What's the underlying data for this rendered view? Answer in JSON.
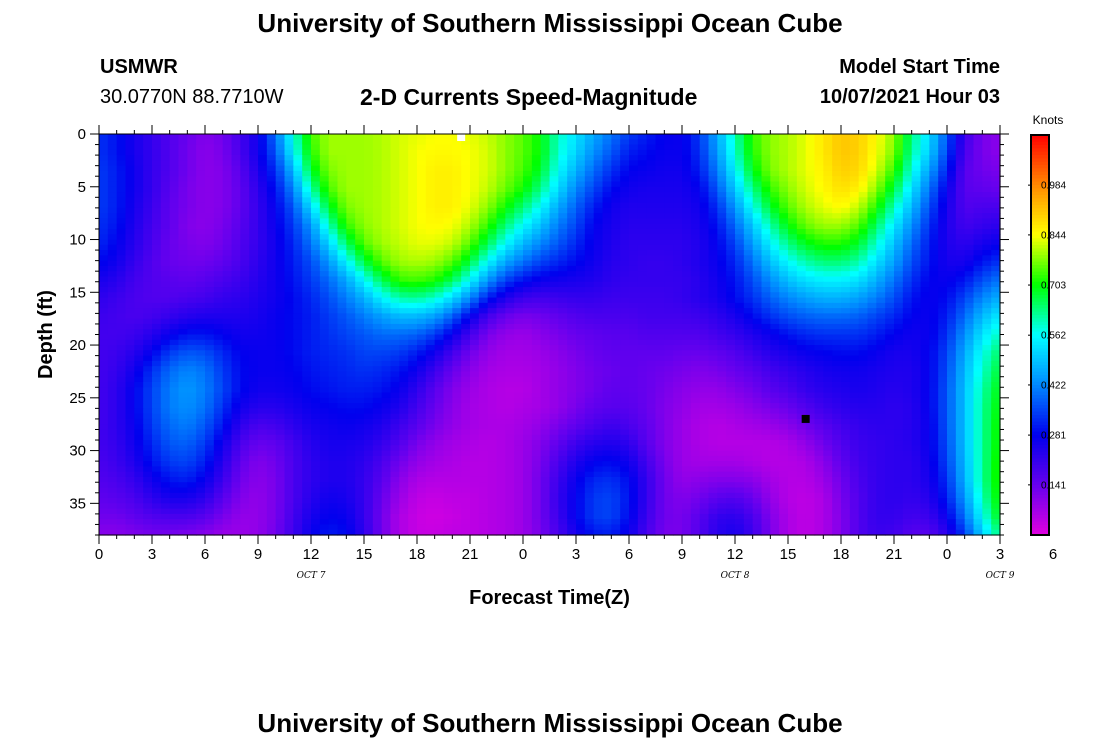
{
  "page": {
    "title_top": "University of Southern Mississippi Ocean Cube",
    "title_bottom": "University of Southern Mississippi Ocean Cube",
    "station": "USMWR",
    "coords": "30.0770N  88.7710W",
    "plot_title": "2-D Currents Speed-Magnitude",
    "model_start_label": "Model Start Time",
    "model_start_value": "10/07/2021 Hour 03"
  },
  "chart_data": {
    "type": "heatmap",
    "title": "2-D Currents Speed-Magnitude",
    "xlabel": "Forecast Time(Z)",
    "ylabel": "Depth (ft)",
    "x_range_hours": [
      0,
      51
    ],
    "x_ticks": [
      "0",
      "3",
      "6",
      "9",
      "12",
      "15",
      "18",
      "21",
      "0",
      "3",
      "6",
      "9",
      "12",
      "15",
      "18",
      "21",
      "0",
      "3",
      "6"
    ],
    "date_labels": [
      {
        "text": "OCT 7",
        "hour": 12
      },
      {
        "text": "OCT 8",
        "hour": 36
      },
      {
        "text": "OCT 9",
        "hour": 51
      }
    ],
    "y_range": [
      0,
      38
    ],
    "y_inverted": true,
    "y_ticks": [
      "0",
      "5",
      "10",
      "15",
      "20",
      "25",
      "30",
      "35"
    ],
    "colorbar": {
      "unit": "Knots",
      "min": 0.0,
      "max": 1.125,
      "tick_labels": [
        "0.141",
        "0.281",
        "0.422",
        "0.562",
        "0.703",
        "0.844",
        "0.984"
      ],
      "colors": [
        "#e000e0",
        "#6600ee",
        "#0000ee",
        "#0088ff",
        "#00ffff",
        "#00ff00",
        "#ffff00",
        "#ff8800",
        "#ff0000"
      ]
    },
    "markers": [
      {
        "hour": 20.5,
        "depth": 0,
        "color": "#ffffff"
      },
      {
        "hour": 40,
        "depth": 27,
        "color": "#000000"
      }
    ],
    "speed_knots": [
      [
        0.33,
        0.3,
        0.25,
        0.21,
        0.17,
        0.14,
        0.11,
        0.13,
        0.19,
        0.26,
        0.4,
        0.58,
        0.74,
        0.79,
        0.79,
        0.79,
        0.8,
        0.82,
        0.83,
        0.84,
        0.84,
        0.83,
        0.81,
        0.78,
        0.75,
        0.7,
        0.6,
        0.53,
        0.46,
        0.4,
        0.34,
        0.31,
        0.28,
        0.27,
        0.34,
        0.46,
        0.61,
        0.73,
        0.78,
        0.8,
        0.83,
        0.87,
        0.91,
        0.9,
        0.85,
        0.78,
        0.64,
        0.52,
        0.37,
        0.2,
        0.12,
        0.1
      ],
      [
        0.33,
        0.3,
        0.25,
        0.21,
        0.17,
        0.13,
        0.1,
        0.12,
        0.18,
        0.26,
        0.37,
        0.55,
        0.72,
        0.79,
        0.79,
        0.79,
        0.8,
        0.82,
        0.84,
        0.85,
        0.85,
        0.84,
        0.82,
        0.78,
        0.75,
        0.7,
        0.59,
        0.51,
        0.43,
        0.37,
        0.31,
        0.29,
        0.27,
        0.27,
        0.33,
        0.44,
        0.59,
        0.72,
        0.78,
        0.8,
        0.83,
        0.87,
        0.91,
        0.9,
        0.84,
        0.77,
        0.62,
        0.5,
        0.35,
        0.18,
        0.12,
        0.1
      ],
      [
        0.34,
        0.31,
        0.26,
        0.21,
        0.17,
        0.13,
        0.1,
        0.11,
        0.16,
        0.24,
        0.33,
        0.48,
        0.68,
        0.77,
        0.79,
        0.79,
        0.8,
        0.82,
        0.84,
        0.86,
        0.86,
        0.84,
        0.82,
        0.78,
        0.74,
        0.68,
        0.56,
        0.47,
        0.39,
        0.33,
        0.28,
        0.27,
        0.26,
        0.26,
        0.31,
        0.41,
        0.55,
        0.69,
        0.77,
        0.8,
        0.83,
        0.86,
        0.9,
        0.89,
        0.82,
        0.73,
        0.58,
        0.45,
        0.31,
        0.16,
        0.13,
        0.12
      ],
      [
        0.34,
        0.31,
        0.26,
        0.21,
        0.16,
        0.12,
        0.1,
        0.11,
        0.15,
        0.22,
        0.3,
        0.42,
        0.61,
        0.74,
        0.79,
        0.79,
        0.8,
        0.82,
        0.84,
        0.86,
        0.86,
        0.84,
        0.81,
        0.76,
        0.71,
        0.63,
        0.52,
        0.42,
        0.35,
        0.29,
        0.26,
        0.25,
        0.25,
        0.25,
        0.28,
        0.37,
        0.5,
        0.63,
        0.73,
        0.78,
        0.82,
        0.85,
        0.88,
        0.86,
        0.78,
        0.67,
        0.53,
        0.4,
        0.27,
        0.16,
        0.15,
        0.14
      ],
      [
        0.34,
        0.31,
        0.25,
        0.2,
        0.15,
        0.12,
        0.1,
        0.11,
        0.15,
        0.21,
        0.28,
        0.37,
        0.52,
        0.68,
        0.77,
        0.79,
        0.8,
        0.82,
        0.84,
        0.86,
        0.86,
        0.83,
        0.78,
        0.71,
        0.64,
        0.56,
        0.46,
        0.38,
        0.31,
        0.26,
        0.24,
        0.24,
        0.24,
        0.24,
        0.26,
        0.33,
        0.44,
        0.57,
        0.68,
        0.75,
        0.8,
        0.83,
        0.85,
        0.81,
        0.72,
        0.6,
        0.48,
        0.36,
        0.25,
        0.17,
        0.18,
        0.18
      ],
      [
        0.33,
        0.3,
        0.24,
        0.19,
        0.15,
        0.11,
        0.1,
        0.12,
        0.16,
        0.21,
        0.27,
        0.34,
        0.44,
        0.6,
        0.73,
        0.78,
        0.8,
        0.82,
        0.84,
        0.85,
        0.84,
        0.8,
        0.73,
        0.64,
        0.56,
        0.49,
        0.41,
        0.35,
        0.28,
        0.25,
        0.23,
        0.23,
        0.23,
        0.23,
        0.25,
        0.3,
        0.39,
        0.5,
        0.61,
        0.7,
        0.76,
        0.79,
        0.79,
        0.75,
        0.65,
        0.54,
        0.43,
        0.33,
        0.24,
        0.19,
        0.21,
        0.22
      ],
      [
        0.32,
        0.28,
        0.23,
        0.18,
        0.14,
        0.12,
        0.11,
        0.13,
        0.17,
        0.21,
        0.26,
        0.32,
        0.4,
        0.51,
        0.65,
        0.75,
        0.79,
        0.81,
        0.83,
        0.83,
        0.81,
        0.75,
        0.66,
        0.56,
        0.48,
        0.42,
        0.37,
        0.32,
        0.27,
        0.24,
        0.22,
        0.22,
        0.22,
        0.22,
        0.24,
        0.28,
        0.35,
        0.45,
        0.55,
        0.63,
        0.69,
        0.72,
        0.72,
        0.68,
        0.59,
        0.49,
        0.39,
        0.31,
        0.24,
        0.22,
        0.25,
        0.27
      ],
      [
        0.29,
        0.26,
        0.21,
        0.17,
        0.14,
        0.13,
        0.13,
        0.15,
        0.18,
        0.22,
        0.26,
        0.31,
        0.36,
        0.44,
        0.55,
        0.67,
        0.75,
        0.79,
        0.8,
        0.79,
        0.75,
        0.67,
        0.56,
        0.46,
        0.4,
        0.35,
        0.32,
        0.29,
        0.26,
        0.23,
        0.22,
        0.21,
        0.21,
        0.22,
        0.24,
        0.27,
        0.32,
        0.4,
        0.49,
        0.56,
        0.61,
        0.64,
        0.64,
        0.61,
        0.53,
        0.45,
        0.36,
        0.3,
        0.25,
        0.25,
        0.3,
        0.33
      ],
      [
        0.25,
        0.23,
        0.19,
        0.17,
        0.16,
        0.15,
        0.16,
        0.18,
        0.2,
        0.23,
        0.26,
        0.3,
        0.34,
        0.39,
        0.46,
        0.56,
        0.66,
        0.73,
        0.74,
        0.72,
        0.66,
        0.56,
        0.44,
        0.35,
        0.3,
        0.27,
        0.26,
        0.25,
        0.24,
        0.22,
        0.21,
        0.21,
        0.21,
        0.21,
        0.23,
        0.26,
        0.3,
        0.36,
        0.43,
        0.49,
        0.53,
        0.55,
        0.55,
        0.53,
        0.47,
        0.4,
        0.33,
        0.28,
        0.27,
        0.3,
        0.36,
        0.4
      ],
      [
        0.22,
        0.2,
        0.18,
        0.17,
        0.17,
        0.18,
        0.19,
        0.21,
        0.22,
        0.24,
        0.26,
        0.29,
        0.32,
        0.36,
        0.41,
        0.47,
        0.55,
        0.61,
        0.62,
        0.59,
        0.52,
        0.42,
        0.31,
        0.24,
        0.2,
        0.19,
        0.2,
        0.21,
        0.21,
        0.2,
        0.2,
        0.2,
        0.2,
        0.21,
        0.23,
        0.25,
        0.29,
        0.33,
        0.38,
        0.42,
        0.45,
        0.47,
        0.47,
        0.45,
        0.41,
        0.36,
        0.3,
        0.27,
        0.29,
        0.35,
        0.42,
        0.47
      ],
      [
        0.2,
        0.19,
        0.18,
        0.19,
        0.21,
        0.23,
        0.24,
        0.24,
        0.24,
        0.25,
        0.27,
        0.29,
        0.31,
        0.34,
        0.37,
        0.41,
        0.45,
        0.48,
        0.48,
        0.45,
        0.38,
        0.28,
        0.19,
        0.14,
        0.12,
        0.13,
        0.15,
        0.17,
        0.18,
        0.18,
        0.18,
        0.19,
        0.19,
        0.19,
        0.2,
        0.22,
        0.25,
        0.29,
        0.33,
        0.36,
        0.38,
        0.39,
        0.39,
        0.38,
        0.35,
        0.32,
        0.28,
        0.27,
        0.31,
        0.39,
        0.48,
        0.54
      ],
      [
        0.19,
        0.19,
        0.2,
        0.23,
        0.27,
        0.3,
        0.3,
        0.28,
        0.26,
        0.26,
        0.27,
        0.29,
        0.31,
        0.33,
        0.35,
        0.37,
        0.39,
        0.39,
        0.38,
        0.34,
        0.27,
        0.19,
        0.12,
        0.09,
        0.08,
        0.1,
        0.12,
        0.14,
        0.15,
        0.16,
        0.16,
        0.17,
        0.17,
        0.17,
        0.17,
        0.19,
        0.21,
        0.24,
        0.27,
        0.3,
        0.32,
        0.33,
        0.33,
        0.33,
        0.31,
        0.28,
        0.26,
        0.27,
        0.33,
        0.43,
        0.53,
        0.6
      ],
      [
        0.19,
        0.2,
        0.23,
        0.28,
        0.34,
        0.37,
        0.36,
        0.32,
        0.28,
        0.27,
        0.27,
        0.29,
        0.31,
        0.32,
        0.33,
        0.35,
        0.35,
        0.34,
        0.31,
        0.26,
        0.19,
        0.13,
        0.09,
        0.07,
        0.07,
        0.08,
        0.1,
        0.12,
        0.14,
        0.15,
        0.15,
        0.15,
        0.15,
        0.14,
        0.14,
        0.15,
        0.17,
        0.2,
        0.23,
        0.25,
        0.27,
        0.28,
        0.29,
        0.29,
        0.27,
        0.25,
        0.25,
        0.28,
        0.35,
        0.46,
        0.57,
        0.65
      ],
      [
        0.19,
        0.21,
        0.26,
        0.33,
        0.39,
        0.42,
        0.4,
        0.34,
        0.29,
        0.27,
        0.27,
        0.28,
        0.3,
        0.31,
        0.32,
        0.33,
        0.32,
        0.3,
        0.26,
        0.2,
        0.14,
        0.1,
        0.07,
        0.06,
        0.06,
        0.07,
        0.09,
        0.11,
        0.13,
        0.14,
        0.15,
        0.14,
        0.13,
        0.12,
        0.11,
        0.12,
        0.14,
        0.16,
        0.19,
        0.21,
        0.23,
        0.25,
        0.26,
        0.26,
        0.25,
        0.24,
        0.24,
        0.28,
        0.36,
        0.48,
        0.59,
        0.68
      ],
      [
        0.19,
        0.22,
        0.28,
        0.35,
        0.41,
        0.44,
        0.41,
        0.35,
        0.29,
        0.26,
        0.26,
        0.27,
        0.29,
        0.3,
        0.31,
        0.31,
        0.3,
        0.27,
        0.22,
        0.16,
        0.11,
        0.08,
        0.06,
        0.05,
        0.05,
        0.07,
        0.09,
        0.11,
        0.13,
        0.15,
        0.15,
        0.14,
        0.12,
        0.1,
        0.09,
        0.09,
        0.11,
        0.13,
        0.16,
        0.18,
        0.21,
        0.23,
        0.24,
        0.25,
        0.24,
        0.23,
        0.24,
        0.28,
        0.37,
        0.49,
        0.61,
        0.7
      ],
      [
        0.19,
        0.22,
        0.28,
        0.35,
        0.41,
        0.43,
        0.4,
        0.33,
        0.26,
        0.23,
        0.23,
        0.25,
        0.27,
        0.28,
        0.29,
        0.29,
        0.27,
        0.24,
        0.19,
        0.14,
        0.1,
        0.07,
        0.06,
        0.05,
        0.06,
        0.07,
        0.09,
        0.12,
        0.15,
        0.16,
        0.16,
        0.14,
        0.11,
        0.09,
        0.07,
        0.07,
        0.08,
        0.1,
        0.12,
        0.14,
        0.17,
        0.2,
        0.22,
        0.23,
        0.23,
        0.22,
        0.23,
        0.28,
        0.37,
        0.49,
        0.62,
        0.71
      ],
      [
        0.19,
        0.22,
        0.27,
        0.34,
        0.39,
        0.41,
        0.37,
        0.3,
        0.22,
        0.18,
        0.19,
        0.22,
        0.25,
        0.26,
        0.27,
        0.26,
        0.24,
        0.2,
        0.16,
        0.12,
        0.09,
        0.07,
        0.06,
        0.06,
        0.07,
        0.09,
        0.12,
        0.15,
        0.18,
        0.2,
        0.18,
        0.15,
        0.11,
        0.08,
        0.06,
        0.05,
        0.06,
        0.07,
        0.08,
        0.1,
        0.13,
        0.16,
        0.19,
        0.21,
        0.22,
        0.22,
        0.23,
        0.27,
        0.37,
        0.49,
        0.62,
        0.72
      ],
      [
        0.19,
        0.21,
        0.26,
        0.32,
        0.37,
        0.38,
        0.34,
        0.26,
        0.18,
        0.14,
        0.15,
        0.19,
        0.23,
        0.25,
        0.25,
        0.24,
        0.21,
        0.17,
        0.12,
        0.09,
        0.07,
        0.06,
        0.05,
        0.06,
        0.08,
        0.11,
        0.15,
        0.2,
        0.23,
        0.24,
        0.22,
        0.16,
        0.11,
        0.08,
        0.06,
        0.05,
        0.05,
        0.05,
        0.05,
        0.06,
        0.09,
        0.13,
        0.17,
        0.2,
        0.21,
        0.22,
        0.23,
        0.27,
        0.36,
        0.49,
        0.62,
        0.72
      ],
      [
        0.18,
        0.2,
        0.24,
        0.3,
        0.34,
        0.35,
        0.31,
        0.23,
        0.15,
        0.11,
        0.13,
        0.18,
        0.22,
        0.24,
        0.24,
        0.22,
        0.18,
        0.13,
        0.09,
        0.07,
        0.06,
        0.05,
        0.05,
        0.06,
        0.08,
        0.12,
        0.18,
        0.24,
        0.28,
        0.29,
        0.26,
        0.19,
        0.12,
        0.08,
        0.07,
        0.07,
        0.07,
        0.06,
        0.05,
        0.05,
        0.06,
        0.1,
        0.15,
        0.19,
        0.21,
        0.22,
        0.22,
        0.26,
        0.35,
        0.48,
        0.62,
        0.73
      ],
      [
        0.17,
        0.18,
        0.21,
        0.26,
        0.3,
        0.31,
        0.27,
        0.2,
        0.13,
        0.1,
        0.12,
        0.18,
        0.22,
        0.24,
        0.24,
        0.21,
        0.16,
        0.1,
        0.06,
        0.05,
        0.05,
        0.05,
        0.05,
        0.06,
        0.08,
        0.13,
        0.2,
        0.27,
        0.32,
        0.33,
        0.29,
        0.21,
        0.13,
        0.09,
        0.1,
        0.11,
        0.11,
        0.1,
        0.07,
        0.05,
        0.05,
        0.08,
        0.13,
        0.18,
        0.21,
        0.22,
        0.22,
        0.25,
        0.33,
        0.47,
        0.62,
        0.73
      ],
      [
        0.15,
        0.16,
        0.18,
        0.22,
        0.25,
        0.25,
        0.22,
        0.16,
        0.11,
        0.09,
        0.12,
        0.18,
        0.23,
        0.26,
        0.25,
        0.21,
        0.14,
        0.08,
        0.04,
        0.03,
        0.04,
        0.04,
        0.05,
        0.06,
        0.08,
        0.13,
        0.21,
        0.28,
        0.34,
        0.35,
        0.3,
        0.21,
        0.13,
        0.11,
        0.13,
        0.16,
        0.17,
        0.14,
        0.09,
        0.05,
        0.04,
        0.06,
        0.12,
        0.17,
        0.21,
        0.22,
        0.21,
        0.23,
        0.31,
        0.44,
        0.6,
        0.72
      ],
      [
        0.13,
        0.13,
        0.15,
        0.17,
        0.18,
        0.18,
        0.16,
        0.12,
        0.09,
        0.09,
        0.12,
        0.19,
        0.25,
        0.28,
        0.27,
        0.21,
        0.13,
        0.06,
        0.03,
        0.02,
        0.03,
        0.04,
        0.05,
        0.06,
        0.08,
        0.13,
        0.2,
        0.28,
        0.34,
        0.35,
        0.29,
        0.2,
        0.13,
        0.12,
        0.16,
        0.21,
        0.22,
        0.18,
        0.11,
        0.06,
        0.04,
        0.06,
        0.11,
        0.17,
        0.21,
        0.21,
        0.19,
        0.2,
        0.27,
        0.4,
        0.56,
        0.7
      ],
      [
        0.1,
        0.1,
        0.11,
        0.12,
        0.12,
        0.11,
        0.1,
        0.08,
        0.08,
        0.09,
        0.13,
        0.2,
        0.27,
        0.31,
        0.29,
        0.22,
        0.13,
        0.06,
        0.03,
        0.03,
        0.04,
        0.04,
        0.05,
        0.06,
        0.08,
        0.12,
        0.18,
        0.25,
        0.3,
        0.31,
        0.26,
        0.18,
        0.12,
        0.12,
        0.17,
        0.23,
        0.25,
        0.2,
        0.12,
        0.06,
        0.04,
        0.06,
        0.11,
        0.17,
        0.2,
        0.19,
        0.16,
        0.16,
        0.22,
        0.34,
        0.5,
        0.64
      ]
    ]
  }
}
